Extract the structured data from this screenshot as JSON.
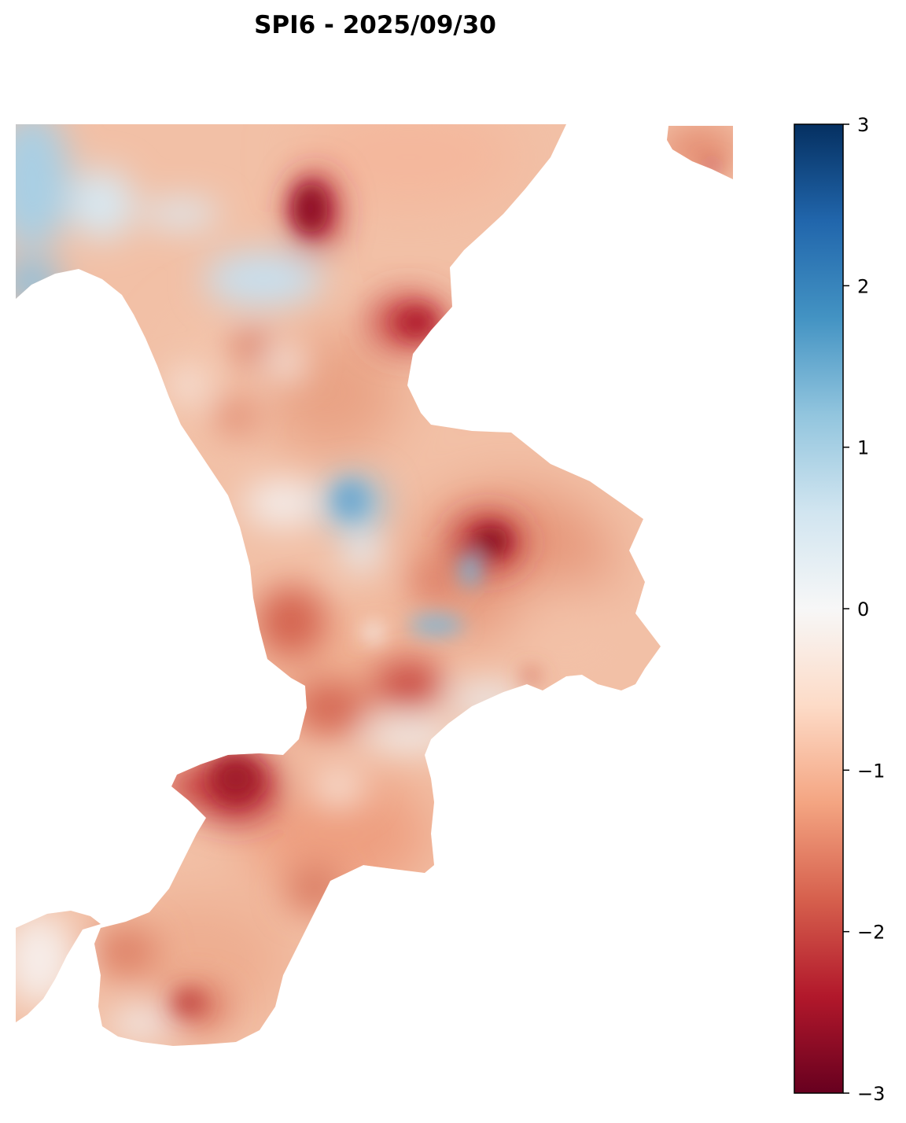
{
  "title": "SPI6 - 2025/09/30",
  "map": {
    "variable": "SPI6",
    "date": "2025/09/30",
    "colormap": "RdBu",
    "colormap_stops": [
      "#67001f",
      "#b2182b",
      "#d6604d",
      "#f4a582",
      "#fddbc7",
      "#f7f7f7",
      "#d1e5f0",
      "#92c5de",
      "#4393c3",
      "#2166ac",
      "#053061"
    ],
    "background_color": "#ffffff"
  },
  "colorbar": {
    "min": -3,
    "max": 3,
    "ticks": [
      {
        "value": 3,
        "label": "3"
      },
      {
        "value": 2,
        "label": "2"
      },
      {
        "value": 1,
        "label": "1"
      },
      {
        "value": 0,
        "label": "0"
      },
      {
        "value": -1,
        "label": "−1"
      },
      {
        "value": -2,
        "label": "−2"
      },
      {
        "value": -3,
        "label": "−3"
      }
    ]
  }
}
